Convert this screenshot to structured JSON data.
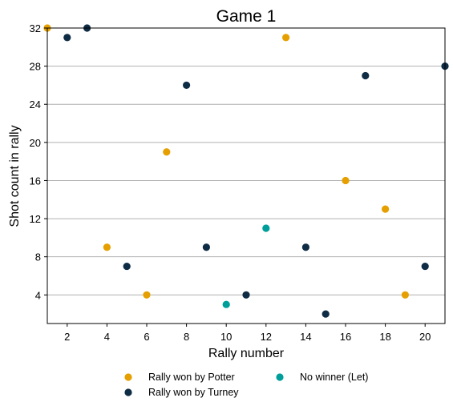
{
  "chart_data": {
    "type": "scatter",
    "title": "Game 1",
    "xlabel": "Rally number",
    "ylabel": "Shot count in rally",
    "xlim": [
      1,
      21
    ],
    "ylim": [
      1,
      32
    ],
    "xticks": [
      2,
      4,
      6,
      8,
      10,
      12,
      14,
      16,
      18,
      20
    ],
    "yticks": [
      4,
      8,
      12,
      16,
      20,
      24,
      28,
      32
    ],
    "grid": "horizontal",
    "legend_position": "bottom",
    "series": [
      {
        "name": "Rally won by Potter",
        "color": "#E69F00",
        "points": [
          [
            1,
            32
          ],
          [
            4,
            9
          ],
          [
            6,
            4
          ],
          [
            7,
            19
          ],
          [
            13,
            31
          ],
          [
            16,
            16
          ],
          [
            18,
            13
          ],
          [
            19,
            4
          ]
        ]
      },
      {
        "name": "Rally won by Turney",
        "color": "#0F2C45",
        "points": [
          [
            2,
            31
          ],
          [
            3,
            32
          ],
          [
            5,
            7
          ],
          [
            8,
            26
          ],
          [
            9,
            9
          ],
          [
            11,
            4
          ],
          [
            14,
            9
          ],
          [
            15,
            2
          ],
          [
            17,
            27
          ],
          [
            20,
            7
          ],
          [
            21,
            28
          ]
        ]
      },
      {
        "name": "No winner (Let)",
        "color": "#009E9A",
        "points": [
          [
            10,
            3
          ],
          [
            12,
            11
          ]
        ]
      }
    ]
  }
}
